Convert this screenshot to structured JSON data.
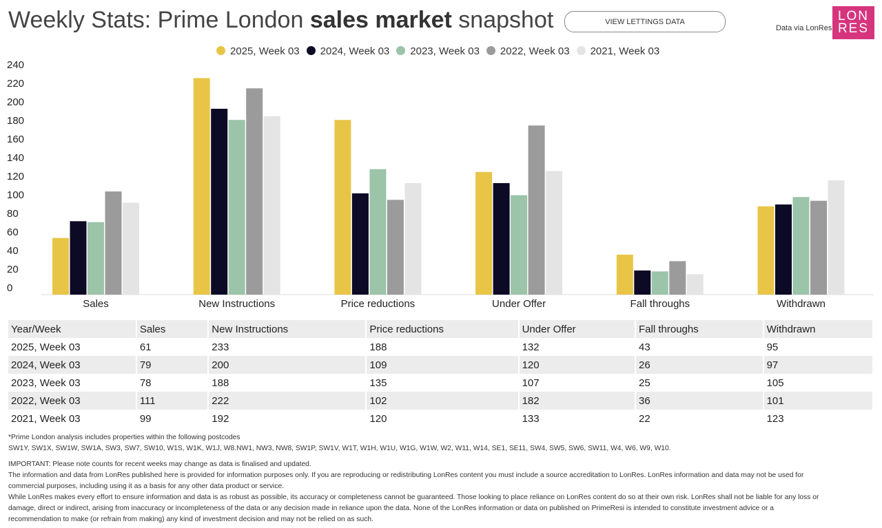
{
  "header": {
    "title_pre": "Weekly Stats: Prime London ",
    "title_bold": "sales market",
    "title_post": " snapshot",
    "button": "VIEW LETTINGS DATA",
    "data_via": "Data via LonRes",
    "logo_text": "LONRES"
  },
  "chart_data": {
    "type": "bar",
    "title": "",
    "categories": [
      "Sales",
      "New Instructions",
      "Price reductions",
      "Under Offer",
      "Fall throughs",
      "Withdrawn"
    ],
    "series": [
      {
        "name": "2025, Week 03",
        "color": "#E8C547",
        "values": [
          61,
          233,
          188,
          132,
          43,
          95
        ]
      },
      {
        "name": "2024, Week 03",
        "color": "#0D0A26",
        "values": [
          79,
          200,
          109,
          120,
          26,
          97
        ]
      },
      {
        "name": "2023, Week 03",
        "color": "#9BC4A9",
        "values": [
          78,
          188,
          135,
          107,
          25,
          105
        ]
      },
      {
        "name": "2022, Week 03",
        "color": "#9B9B9B",
        "values": [
          111,
          222,
          102,
          182,
          36,
          101
        ]
      },
      {
        "name": "2021, Week 03",
        "color": "#E4E4E4",
        "values": [
          99,
          192,
          120,
          133,
          22,
          123
        ]
      }
    ],
    "yticks": [
      0,
      20,
      40,
      60,
      80,
      100,
      120,
      140,
      160,
      180,
      200,
      220,
      240
    ],
    "ylim": [
      0,
      240
    ],
    "xlabel": "",
    "ylabel": "",
    "legend": "top"
  },
  "table": {
    "headers": [
      "Year/Week",
      "Sales",
      "New Instructions",
      "Price reductions",
      "Under Offer",
      "Fall throughs",
      "Withdrawn"
    ],
    "rows": [
      [
        "2025, Week 03",
        "61",
        "233",
        "188",
        "132",
        "43",
        "95"
      ],
      [
        "2024, Week 03",
        "79",
        "200",
        "109",
        "120",
        "26",
        "97"
      ],
      [
        "2023, Week 03",
        "78",
        "188",
        "135",
        "107",
        "25",
        "105"
      ],
      [
        "2022, Week 03",
        "111",
        "222",
        "102",
        "182",
        "36",
        "101"
      ],
      [
        "2021, Week 03",
        "99",
        "192",
        "120",
        "133",
        "22",
        "123"
      ]
    ]
  },
  "footer": {
    "note": "*Prime London analysis includes properties within the following postcodes",
    "postcodes": "SW1Y, SW1X, SW1W, SW1A, SW3, SW7, SW10, W1S, W1K, W1J, W8.NW1, NW3, NW8, SW1P, SW1V, W1T, W1H, W1U, W1G, W1W, W2, W11, W14, SE1, SE11, SW4, SW5, SW6, SW11, W4, W6, W9, W10.",
    "important": "IMPORTANT: Please note counts for recent weeks may change as data is finalised and updated.",
    "info1": "The information and data from LonRes published here is provided for information purposes only. If you are reproducing or redistributing LonRes content you must include a source accreditation to LonRes. LonRes information and data may not be used for",
    "info2": "commercial purposes, including using it as a basis for any other data product or service.",
    "disc1": "While LonRes makes every effort to ensure information and data is as robust as possible, its accuracy or completeness cannot be guaranteed. Those looking to place reliance on LonRes content do so at their own risk. LonRes shall not be liable for any loss or",
    "disc2": "damage, direct or indirect, arising from inaccuracy or incompleteness of the data or any decision made in reliance upon the data. None of the LonRes information or data on published on PrimeResi is intended to constitute investment advice or a",
    "disc3": "recommendation to make (or refrain from making) any kind of investment decision and may not be relied on as such."
  }
}
